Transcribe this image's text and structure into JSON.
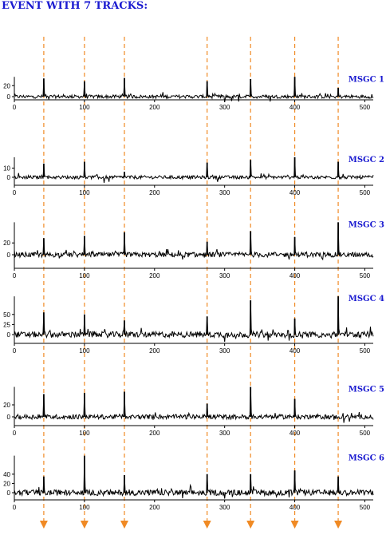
{
  "title": "EVENT WITH 7 TRACKS:",
  "colors": {
    "title": "#1a1ad0",
    "track_name": "#1a1ad0",
    "signal": "#000000",
    "arrows": "#f08a24"
  },
  "chart_data": {
    "type": "line",
    "title": "EVENT WITH 7 TRACKS:",
    "xlim": [
      0,
      512
    ],
    "x_ticks": [
      0,
      100,
      200,
      300,
      400,
      500
    ],
    "track_positions": [
      42,
      100,
      157,
      275,
      337,
      400,
      462
    ],
    "panels": [
      {
        "name": "MSGC 1",
        "y_ticks": [
          0,
          20
        ],
        "ylim": [
          -12,
          36
        ],
        "peaks": [
          [
            42,
            33
          ],
          [
            100,
            28
          ],
          [
            157,
            34
          ],
          [
            275,
            28
          ],
          [
            337,
            32
          ],
          [
            400,
            36
          ],
          [
            462,
            16
          ]
        ],
        "dips": [
          [
            300,
            -10
          ],
          [
            310,
            -8
          ],
          [
            320,
            -9
          ],
          [
            365,
            -9
          ]
        ]
      },
      {
        "name": "MSGC 2",
        "y_ticks": [
          0,
          10
        ],
        "ylim": [
          -6,
          22
        ],
        "peaks": [
          [
            42,
            15
          ],
          [
            100,
            17
          ],
          [
            157,
            6
          ],
          [
            275,
            16
          ],
          [
            337,
            19
          ],
          [
            400,
            22
          ],
          [
            462,
            17
          ]
        ],
        "dips": [
          [
            128,
            -6
          ],
          [
            135,
            -5
          ],
          [
            290,
            -5
          ]
        ]
      },
      {
        "name": "MSGC 3",
        "y_ticks": [
          0,
          20
        ],
        "ylim": [
          -10,
          55
        ],
        "peaks": [
          [
            42,
            28
          ],
          [
            100,
            32
          ],
          [
            157,
            38
          ],
          [
            275,
            22
          ],
          [
            337,
            40
          ],
          [
            400,
            30
          ],
          [
            462,
            55
          ]
        ],
        "dips": [
          [
            240,
            -8
          ],
          [
            392,
            -8
          ],
          [
            440,
            -8
          ]
        ]
      },
      {
        "name": "MSGC 4",
        "y_ticks": [
          0,
          25,
          50
        ],
        "ylim": [
          -20,
          95
        ],
        "peaks": [
          [
            42,
            55
          ],
          [
            100,
            50
          ],
          [
            157,
            35
          ],
          [
            275,
            45
          ],
          [
            337,
            85
          ],
          [
            400,
            40
          ],
          [
            462,
            95
          ]
        ],
        "dips": [
          [
            300,
            -18
          ],
          [
            362,
            -15
          ],
          [
            392,
            -15
          ]
        ]
      },
      {
        "name": "MSGC 5",
        "y_ticks": [
          0,
          20
        ],
        "ylim": [
          -10,
          50
        ],
        "peaks": [
          [
            42,
            38
          ],
          [
            100,
            40
          ],
          [
            157,
            42
          ],
          [
            275,
            22
          ],
          [
            337,
            50
          ],
          [
            400,
            30
          ],
          [
            462,
            0
          ]
        ],
        "dips": [
          [
            470,
            -10
          ],
          [
            478,
            -8
          ],
          [
            456,
            -5
          ]
        ]
      },
      {
        "name": "MSGC 6",
        "y_ticks": [
          0,
          20,
          40
        ],
        "ylim": [
          -15,
          80
        ],
        "peaks": [
          [
            42,
            35
          ],
          [
            100,
            80
          ],
          [
            157,
            38
          ],
          [
            275,
            40
          ],
          [
            337,
            40
          ],
          [
            400,
            48
          ],
          [
            462,
            35
          ]
        ],
        "dips": [
          [
            240,
            -12
          ],
          [
            300,
            -13
          ],
          [
            392,
            -10
          ]
        ]
      }
    ]
  }
}
